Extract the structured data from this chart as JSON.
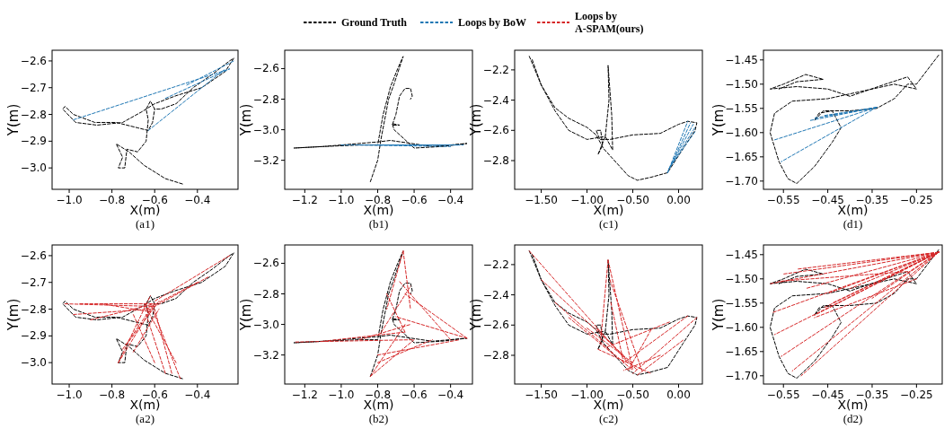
{
  "chart_data": [
    {
      "type": "line",
      "legend": "top",
      "xlabel": "X(m)",
      "ylabel": "Y(m)",
      "annotations": [
        "(a1)"
      ],
      "line_style": "dashed",
      "xlim": [
        -1.08,
        -0.21
      ],
      "ylim": [
        -3.08,
        -2.56
      ],
      "xticks": [
        {
          "value": -1.0,
          "label": "−1.0"
        },
        {
          "value": -0.8,
          "label": "−0.8"
        },
        {
          "value": -0.6,
          "label": "−0.6"
        },
        {
          "value": -0.4,
          "label": "−0.4"
        }
      ],
      "yticks": [
        {
          "value": -3.0,
          "label": "−3.0"
        },
        {
          "value": -2.9,
          "label": "−2.9"
        },
        {
          "value": -2.8,
          "label": "−2.8"
        },
        {
          "value": -2.7,
          "label": "−2.7"
        },
        {
          "value": -2.6,
          "label": "−2.6"
        }
      ],
      "series": [
        {
          "name": "Ground Truth",
          "color": "#000000",
          "x": [
            -0.47,
            -0.55,
            -0.65,
            -0.72,
            -0.78,
            -0.75,
            -0.77,
            -0.74,
            -0.73,
            -0.68,
            -0.64,
            -0.63,
            -0.64,
            -0.62,
            -0.6,
            -0.57,
            -0.5,
            -0.42,
            -0.33,
            -0.25,
            -0.23,
            -0.27,
            -0.38,
            -0.5,
            -0.6,
            -0.66,
            -0.75,
            -0.87,
            -0.97,
            -1.03,
            -1.02,
            -0.98,
            -0.88,
            -0.78,
            -0.68,
            -0.63,
            -0.61,
            -0.6
          ],
          "values": [
            -3.06,
            -3.04,
            -2.99,
            -2.94,
            -2.91,
            -2.96,
            -3.0,
            -3.0,
            -2.93,
            -2.94,
            -2.9,
            -2.82,
            -2.78,
            -2.75,
            -2.78,
            -2.78,
            -2.76,
            -2.7,
            -2.65,
            -2.6,
            -2.59,
            -2.64,
            -2.7,
            -2.73,
            -2.76,
            -2.79,
            -2.83,
            -2.84,
            -2.83,
            -2.78,
            -2.77,
            -2.8,
            -2.83,
            -2.83,
            -2.85,
            -2.86,
            -2.83,
            -2.78
          ]
        },
        {
          "name": "Loops by BoW",
          "color": "#1f77b4",
          "x": [
            -0.98,
            -0.25,
            null,
            -0.63,
            -0.27,
            null,
            -0.55,
            -0.25,
            null,
            -0.45,
            -0.23
          ],
          "values": [
            -2.82,
            -2.63,
            null,
            -2.86,
            -2.63,
            null,
            -2.74,
            -2.63,
            null,
            -2.69,
            -2.6
          ]
        }
      ]
    },
    {
      "type": "line",
      "xlabel": "X(m)",
      "ylabel": "Y(m)",
      "annotations": [
        "(b1)"
      ],
      "line_style": "dashed",
      "xlim": [
        -1.31,
        -0.28
      ],
      "ylim": [
        -3.39,
        -2.48
      ],
      "xticks": [
        {
          "value": -1.2,
          "label": "−1.2"
        },
        {
          "value": -1.0,
          "label": "−1.0"
        },
        {
          "value": -0.8,
          "label": "−0.8"
        },
        {
          "value": -0.6,
          "label": "−0.6"
        },
        {
          "value": -0.4,
          "label": "−0.4"
        }
      ],
      "yticks": [
        {
          "value": -3.2,
          "label": "−3.2"
        },
        {
          "value": -3.0,
          "label": "−3.0"
        },
        {
          "value": -2.8,
          "label": "−2.8"
        },
        {
          "value": -2.6,
          "label": "−2.6"
        }
      ],
      "series": [
        {
          "color": "#000000",
          "x": [
            -0.84,
            -0.8,
            -0.78,
            -0.74,
            -0.71,
            -0.66,
            -0.69,
            -0.73,
            -0.77,
            -0.8,
            -0.9,
            -1.1,
            -1.26,
            -1.1,
            -0.8,
            -0.73,
            -0.5,
            -0.31,
            -0.45,
            -0.6,
            -0.71,
            -0.72,
            -0.68,
            -0.72,
            -0.7,
            -0.68,
            -0.65,
            -0.62,
            -0.61,
            -0.62
          ],
          "values": [
            -3.34,
            -3.2,
            -3.05,
            -2.8,
            -2.7,
            -2.52,
            -2.6,
            -2.72,
            -2.9,
            -3.1,
            -3.1,
            -3.11,
            -3.12,
            -3.11,
            -3.08,
            -3.07,
            -3.11,
            -3.09,
            -3.11,
            -3.12,
            -3.0,
            -2.96,
            -2.97,
            -2.97,
            -2.9,
            -2.78,
            -2.73,
            -2.73,
            -2.78,
            -2.8
          ]
        },
        {
          "color": "#1f77b4",
          "x": [
            -1.0,
            -0.35,
            null,
            -0.9,
            -0.4,
            null,
            -0.8,
            -0.33
          ],
          "values": [
            -3.1,
            -3.1,
            null,
            -3.1,
            -3.11,
            null,
            -3.1,
            -3.1
          ]
        }
      ]
    },
    {
      "type": "line",
      "xlabel": "X(m)",
      "ylabel": "Y(m)",
      "annotations": [
        "(c1)"
      ],
      "line_style": "dashed",
      "xlim": [
        -1.79,
        0.26
      ],
      "ylim": [
        -2.99,
        -2.07
      ],
      "xticks": [
        {
          "value": -1.5,
          "label": "−1.50"
        },
        {
          "value": -1.0,
          "label": "−1.00"
        },
        {
          "value": -0.5,
          "label": "−0.50"
        },
        {
          "value": 0,
          "label": "0.00"
        }
      ],
      "yticks": [
        {
          "value": -2.8,
          "label": "−2.8"
        },
        {
          "value": -2.6,
          "label": "−2.6"
        },
        {
          "value": -2.4,
          "label": "−2.4"
        },
        {
          "value": -2.2,
          "label": "−2.2"
        }
      ],
      "series": [
        {
          "color": "#000000",
          "x": [
            -1.63,
            -1.5,
            -1.35,
            -1.2,
            -1.0,
            -0.9,
            -0.82,
            -0.7,
            -0.55,
            -0.45,
            -0.3,
            -0.12,
            0.05,
            0.18,
            0.2,
            0.1,
            0.0,
            -0.2,
            -0.5,
            -0.75,
            -0.86,
            -0.9,
            -0.85,
            -0.83,
            -0.88,
            -0.8,
            -0.72,
            -0.73,
            -0.77,
            -0.76,
            -0.8,
            -1.0,
            -1.2,
            -1.35,
            -1.5,
            -1.6
          ],
          "values": [
            -2.11,
            -2.3,
            -2.45,
            -2.52,
            -2.58,
            -2.63,
            -2.72,
            -2.8,
            -2.9,
            -2.93,
            -2.91,
            -2.88,
            -2.72,
            -2.6,
            -2.55,
            -2.54,
            -2.56,
            -2.62,
            -2.63,
            -2.66,
            -2.66,
            -2.6,
            -2.6,
            -2.7,
            -2.76,
            -2.64,
            -2.73,
            -2.5,
            -2.17,
            -2.4,
            -2.64,
            -2.66,
            -2.6,
            -2.47,
            -2.3,
            -2.13
          ]
        },
        {
          "color": "#1f77b4",
          "x": [
            -0.12,
            0.1,
            null,
            -0.12,
            0.13,
            null,
            -0.11,
            0.16,
            null,
            -0.1,
            0.18,
            null,
            -0.09,
            0.19
          ],
          "values": [
            -2.88,
            -2.54,
            null,
            -2.88,
            -2.55,
            null,
            -2.86,
            -2.56,
            null,
            -2.85,
            -2.58,
            null,
            -2.84,
            -2.6
          ]
        }
      ]
    },
    {
      "type": "line",
      "xlabel": "X(m)",
      "ylabel": "Y(m)",
      "annotations": [
        "(d1)"
      ],
      "line_style": "dashed",
      "xlim": [
        -0.595,
        -0.192
      ],
      "ylim": [
        -1.717,
        -1.43
      ],
      "xticks": [
        {
          "value": -0.55,
          "label": "−0.55"
        },
        {
          "value": -0.45,
          "label": "−0.45"
        },
        {
          "value": -0.35,
          "label": "−0.35"
        },
        {
          "value": -0.25,
          "label": "−0.25"
        }
      ],
      "yticks": [
        {
          "value": -1.7,
          "label": "−1.70"
        },
        {
          "value": -1.65,
          "label": "−1.65"
        },
        {
          "value": -1.6,
          "label": "−1.60"
        },
        {
          "value": -1.55,
          "label": "−1.55"
        },
        {
          "value": -1.5,
          "label": "−1.50"
        },
        {
          "value": -1.45,
          "label": "−1.45"
        }
      ],
      "series": [
        {
          "color": "#000000",
          "x": [
            -0.2,
            -0.25,
            -0.27,
            -0.3,
            -0.34,
            -0.4,
            -0.46,
            -0.48,
            -0.47,
            -0.44,
            -0.42,
            -0.44,
            -0.48,
            -0.52,
            -0.54,
            -0.56,
            -0.58,
            -0.57,
            -0.53,
            -0.45,
            -0.4,
            -0.3,
            -0.25,
            -0.27,
            -0.32,
            -0.4,
            -0.45,
            -0.52,
            -0.58,
            -0.55,
            -0.5,
            -0.46,
            -0.52,
            -0.56
          ],
          "values": [
            -1.44,
            -1.5,
            -1.5,
            -1.53,
            -1.55,
            -1.555,
            -1.555,
            -1.575,
            -1.56,
            -1.555,
            -1.59,
            -1.62,
            -1.67,
            -1.705,
            -1.695,
            -1.66,
            -1.6,
            -1.56,
            -1.535,
            -1.53,
            -1.52,
            -1.5,
            -1.51,
            -1.485,
            -1.5,
            -1.525,
            -1.51,
            -1.505,
            -1.51,
            -1.5,
            -1.48,
            -1.49,
            -1.495,
            -1.51
          ]
        },
        {
          "color": "#1f77b4",
          "x": [
            -0.34,
            -0.57,
            null,
            -0.34,
            -0.555,
            null,
            -0.34,
            -0.49,
            null,
            -0.34,
            -0.48,
            null,
            -0.34,
            -0.46
          ],
          "values": [
            -1.548,
            -1.615,
            null,
            -1.548,
            -1.66,
            null,
            -1.548,
            -1.575,
            null,
            -1.548,
            -1.57,
            null,
            -1.548,
            -1.565
          ]
        }
      ]
    },
    {
      "type": "line",
      "legend": "top",
      "xlabel": "X(m)",
      "ylabel": "Y(m)",
      "annotations": [
        "(a2)"
      ],
      "line_style": "dashed",
      "xlim": [
        -1.08,
        -0.21
      ],
      "ylim": [
        -3.08,
        -2.56
      ],
      "xticks": [
        {
          "value": -1.0,
          "label": "−1.0"
        },
        {
          "value": -0.8,
          "label": "−0.8"
        },
        {
          "value": -0.6,
          "label": "−0.6"
        },
        {
          "value": -0.4,
          "label": "−0.4"
        }
      ],
      "yticks": [
        {
          "value": -3.0,
          "label": "−3.0"
        },
        {
          "value": -2.9,
          "label": "−2.9"
        },
        {
          "value": -2.8,
          "label": "−2.8"
        },
        {
          "value": -2.7,
          "label": "−2.7"
        },
        {
          "value": -2.6,
          "label": "−2.6"
        }
      ],
      "series": [
        {
          "color": "#000000",
          "x": [
            -0.47,
            -0.55,
            -0.65,
            -0.72,
            -0.78,
            -0.75,
            -0.77,
            -0.74,
            -0.73,
            -0.68,
            -0.64,
            -0.63,
            -0.64,
            -0.62,
            -0.6,
            -0.57,
            -0.5,
            -0.42,
            -0.33,
            -0.25,
            -0.23,
            -0.27,
            -0.38,
            -0.5,
            -0.6,
            -0.66,
            -0.75,
            -0.87,
            -0.97,
            -1.03,
            -1.02,
            -0.98,
            -0.88,
            -0.78,
            -0.68,
            -0.63,
            -0.61,
            -0.6
          ],
          "values": [
            -3.06,
            -3.04,
            -2.99,
            -2.94,
            -2.91,
            -2.96,
            -3.0,
            -3.0,
            -2.93,
            -2.94,
            -2.9,
            -2.82,
            -2.78,
            -2.75,
            -2.78,
            -2.78,
            -2.76,
            -2.7,
            -2.65,
            -2.6,
            -2.59,
            -2.64,
            -2.7,
            -2.73,
            -2.76,
            -2.79,
            -2.83,
            -2.84,
            -2.83,
            -2.78,
            -2.77,
            -2.8,
            -2.83,
            -2.83,
            -2.85,
            -2.86,
            -2.83,
            -2.78
          ]
        },
        {
          "name": "Loops by A-SPAM(ours)",
          "color": "#d62728",
          "x": [
            -1.02,
            -0.6,
            null,
            -0.98,
            -0.62,
            null,
            -0.9,
            -0.6,
            null,
            -0.77,
            -0.6,
            null,
            -0.75,
            -0.62,
            null,
            -0.72,
            -0.58,
            null,
            -0.48,
            -0.62,
            null,
            -0.52,
            -0.6,
            null,
            -0.55,
            -0.64,
            null,
            -0.6,
            -0.7,
            null,
            -0.7,
            -0.58,
            null,
            -0.35,
            -0.6,
            null,
            -0.25,
            -0.6,
            null,
            -0.4,
            -0.64,
            null,
            -0.95,
            -0.6,
            null,
            -0.85,
            -0.62,
            null,
            -0.77,
            -0.62,
            null,
            -0.65,
            -0.5
          ],
          "values": [
            -2.78,
            -2.79,
            null,
            -2.82,
            -2.8,
            null,
            -2.84,
            -2.78,
            null,
            -3.0,
            -2.78,
            null,
            -2.95,
            -2.8,
            null,
            -2.92,
            -2.77,
            null,
            -3.06,
            -2.78,
            null,
            -3.04,
            -2.8,
            null,
            -3.04,
            -2.82,
            null,
            -3.0,
            -2.82,
            null,
            -2.96,
            -2.8,
            null,
            -2.68,
            -2.79,
            null,
            -2.6,
            -2.77,
            null,
            -2.7,
            -2.8,
            null,
            -2.78,
            -2.78,
            null,
            -2.78,
            -2.81,
            null,
            -3.0,
            -2.75,
            null,
            -2.78,
            -3.0
          ]
        }
      ]
    },
    {
      "type": "line",
      "xlabel": "X(m)",
      "ylabel": "Y(m)",
      "annotations": [
        "(b2)"
      ],
      "line_style": "dashed",
      "xlim": [
        -1.31,
        -0.28
      ],
      "ylim": [
        -3.39,
        -2.48
      ],
      "xticks": [
        {
          "value": -1.2,
          "label": "−1.2"
        },
        {
          "value": -1.0,
          "label": "−1.0"
        },
        {
          "value": -0.8,
          "label": "−0.8"
        },
        {
          "value": -0.6,
          "label": "−0.6"
        },
        {
          "value": -0.4,
          "label": "−0.4"
        }
      ],
      "yticks": [
        {
          "value": -3.2,
          "label": "−3.2"
        },
        {
          "value": -3.0,
          "label": "−3.0"
        },
        {
          "value": -2.8,
          "label": "−2.8"
        },
        {
          "value": -2.6,
          "label": "−2.6"
        }
      ],
      "series": [
        {
          "color": "#000000",
          "x": [
            -0.84,
            -0.8,
            -0.78,
            -0.74,
            -0.71,
            -0.66,
            -0.69,
            -0.73,
            -0.77,
            -0.8,
            -0.9,
            -1.1,
            -1.26,
            -1.1,
            -0.8,
            -0.73,
            -0.5,
            -0.31,
            -0.45,
            -0.6,
            -0.71,
            -0.72,
            -0.68,
            -0.72,
            -0.7,
            -0.68,
            -0.65,
            -0.62,
            -0.61,
            -0.62
          ],
          "values": [
            -3.34,
            -3.2,
            -3.05,
            -2.8,
            -2.7,
            -2.52,
            -2.6,
            -2.72,
            -2.9,
            -3.1,
            -3.1,
            -3.11,
            -3.12,
            -3.11,
            -3.08,
            -3.07,
            -3.11,
            -3.09,
            -3.11,
            -3.12,
            -3.0,
            -2.96,
            -2.97,
            -2.97,
            -2.9,
            -2.78,
            -2.73,
            -2.73,
            -2.78,
            -2.8
          ]
        },
        {
          "color": "#d62728",
          "x": [
            -1.25,
            -0.6,
            null,
            -1.1,
            -0.65,
            null,
            -0.84,
            -0.65,
            null,
            -0.84,
            -0.6,
            null,
            -0.8,
            -0.5,
            null,
            -0.66,
            -0.62,
            null,
            -0.66,
            -0.75,
            null,
            -0.31,
            -0.7,
            null,
            -0.31,
            -0.65,
            null,
            -0.4,
            -0.68,
            null,
            -0.78,
            -0.62,
            null,
            -0.75,
            -0.65,
            null,
            -0.8,
            -0.35,
            null,
            -0.9,
            -0.62
          ],
          "values": [
            -3.115,
            -3.1,
            null,
            -3.11,
            -3.05,
            null,
            -3.34,
            -3.0,
            null,
            -3.34,
            -3.1,
            null,
            -3.25,
            -3.1,
            null,
            -2.52,
            -2.9,
            null,
            -2.52,
            -2.9,
            null,
            -3.09,
            -2.95,
            null,
            -3.09,
            -2.8,
            null,
            -3.1,
            -2.72,
            null,
            -3.05,
            -2.75,
            null,
            -2.8,
            -3.05,
            null,
            -3.2,
            -3.1,
            null,
            -3.1,
            -3.0
          ]
        }
      ]
    },
    {
      "type": "line",
      "xlabel": "X(m)",
      "ylabel": "Y(m)",
      "annotations": [
        "(c2)"
      ],
      "line_style": "dashed",
      "xlim": [
        -1.79,
        0.26
      ],
      "ylim": [
        -2.99,
        -2.07
      ],
      "xticks": [
        {
          "value": -1.5,
          "label": "−1.50"
        },
        {
          "value": -1.0,
          "label": "−1.00"
        },
        {
          "value": -0.5,
          "label": "−0.50"
        },
        {
          "value": 0,
          "label": "0.00"
        }
      ],
      "yticks": [
        {
          "value": -2.8,
          "label": "−2.8"
        },
        {
          "value": -2.6,
          "label": "−2.6"
        },
        {
          "value": -2.4,
          "label": "−2.4"
        },
        {
          "value": -2.2,
          "label": "−2.2"
        }
      ],
      "series": [
        {
          "color": "#000000",
          "x": [
            -1.63,
            -1.5,
            -1.35,
            -1.2,
            -1.0,
            -0.9,
            -0.82,
            -0.7,
            -0.55,
            -0.45,
            -0.3,
            -0.12,
            0.05,
            0.18,
            0.2,
            0.1,
            0.0,
            -0.2,
            -0.5,
            -0.75,
            -0.86,
            -0.9,
            -0.85,
            -0.83,
            -0.88,
            -0.8,
            -0.72,
            -0.73,
            -0.77,
            -0.76,
            -0.8,
            -1.0,
            -1.2,
            -1.35,
            -1.5,
            -1.6
          ],
          "values": [
            -2.11,
            -2.3,
            -2.45,
            -2.52,
            -2.58,
            -2.63,
            -2.72,
            -2.8,
            -2.9,
            -2.93,
            -2.91,
            -2.88,
            -2.72,
            -2.6,
            -2.55,
            -2.54,
            -2.56,
            -2.62,
            -2.63,
            -2.66,
            -2.66,
            -2.6,
            -2.6,
            -2.7,
            -2.76,
            -2.64,
            -2.73,
            -2.5,
            -2.17,
            -2.4,
            -2.64,
            -2.66,
            -2.6,
            -2.47,
            -2.3,
            -2.13
          ]
        },
        {
          "color": "#d62728",
          "x": [
            -1.63,
            -0.55,
            null,
            -1.5,
            -0.6,
            null,
            -1.35,
            -0.5,
            null,
            -1.2,
            -0.7,
            null,
            -0.77,
            -0.5,
            null,
            -0.77,
            -0.85,
            null,
            -0.75,
            -0.4,
            null,
            -0.74,
            -0.6,
            null,
            0.2,
            -0.5,
            null,
            0.1,
            -0.6,
            null,
            0.05,
            -0.45,
            null,
            -0.1,
            -0.8,
            null,
            -0.3,
            -0.55,
            null,
            -0.9,
            -0.45,
            null,
            -0.88,
            -0.3,
            null,
            -1.0,
            -0.5,
            null,
            -0.2,
            -0.6
          ],
          "values": [
            -2.11,
            -2.85,
            null,
            -2.3,
            -2.8,
            null,
            -2.45,
            -2.9,
            null,
            -2.55,
            -2.8,
            null,
            -2.17,
            -2.9,
            null,
            -2.17,
            -2.7,
            null,
            -2.3,
            -2.9,
            null,
            -2.45,
            -2.85,
            null,
            -2.55,
            -2.92,
            null,
            -2.54,
            -2.85,
            null,
            -2.7,
            -2.93,
            null,
            -2.58,
            -2.75,
            null,
            -2.63,
            -2.9,
            null,
            -2.62,
            -2.9,
            null,
            -2.76,
            -2.92,
            null,
            -2.62,
            -2.85,
            null,
            -2.8,
            -2.9
          ]
        }
      ]
    },
    {
      "type": "line",
      "xlabel": "X(m)",
      "ylabel": "Y(m)",
      "annotations": [
        "(d2)"
      ],
      "line_style": "dashed",
      "xlim": [
        -0.595,
        -0.192
      ],
      "ylim": [
        -1.717,
        -1.43
      ],
      "xticks": [
        {
          "value": -0.55,
          "label": "−0.55"
        },
        {
          "value": -0.45,
          "label": "−0.45"
        },
        {
          "value": -0.35,
          "label": "−0.35"
        },
        {
          "value": -0.25,
          "label": "−0.25"
        }
      ],
      "yticks": [
        {
          "value": -1.7,
          "label": "−1.70"
        },
        {
          "value": -1.65,
          "label": "−1.65"
        },
        {
          "value": -1.6,
          "label": "−1.60"
        },
        {
          "value": -1.55,
          "label": "−1.55"
        },
        {
          "value": -1.5,
          "label": "−1.50"
        },
        {
          "value": -1.45,
          "label": "−1.45"
        }
      ],
      "series": [
        {
          "color": "#000000",
          "x": [
            -0.2,
            -0.25,
            -0.27,
            -0.3,
            -0.34,
            -0.4,
            -0.46,
            -0.48,
            -0.47,
            -0.44,
            -0.42,
            -0.44,
            -0.48,
            -0.52,
            -0.54,
            -0.56,
            -0.58,
            -0.57,
            -0.53,
            -0.45,
            -0.4,
            -0.3,
            -0.25,
            -0.27,
            -0.32,
            -0.4,
            -0.45,
            -0.52,
            -0.58,
            -0.55,
            -0.5,
            -0.46,
            -0.52,
            -0.56
          ],
          "values": [
            -1.44,
            -1.5,
            -1.5,
            -1.53,
            -1.55,
            -1.555,
            -1.555,
            -1.575,
            -1.56,
            -1.555,
            -1.59,
            -1.62,
            -1.67,
            -1.705,
            -1.695,
            -1.66,
            -1.6,
            -1.56,
            -1.535,
            -1.53,
            -1.52,
            -1.5,
            -1.51,
            -1.485,
            -1.5,
            -1.525,
            -1.51,
            -1.505,
            -1.51,
            -1.5,
            -1.48,
            -1.49,
            -1.495,
            -1.51
          ]
        },
        {
          "color": "#d62728",
          "x": [
            -0.2,
            -0.58,
            null,
            -0.2,
            -0.55,
            null,
            -0.2,
            -0.52,
            null,
            -0.2,
            -0.5,
            null,
            -0.2,
            -0.45,
            null,
            -0.2,
            -0.48,
            null,
            -0.2,
            -0.46,
            null,
            -0.2,
            -0.576,
            null,
            -0.2,
            -0.57,
            null,
            -0.2,
            -0.555,
            null,
            -0.2,
            -0.53,
            null,
            -0.2,
            -0.51,
            null,
            -0.2,
            -0.44,
            null,
            -0.2,
            -0.4,
            null,
            -0.2,
            -0.35,
            null,
            -0.27,
            -0.56,
            null,
            -0.25,
            -0.48
          ],
          "values": [
            -1.445,
            -1.51,
            null,
            -1.445,
            -1.49,
            null,
            -1.445,
            -1.48,
            null,
            -1.445,
            -1.52,
            null,
            -1.445,
            -1.53,
            null,
            -1.445,
            -1.575,
            null,
            -1.445,
            -1.56,
            null,
            -1.445,
            -1.57,
            null,
            -1.445,
            -1.615,
            null,
            -1.445,
            -1.66,
            null,
            -1.445,
            -1.69,
            null,
            -1.445,
            -1.7,
            null,
            -1.445,
            -1.55,
            null,
            -1.445,
            -1.52,
            null,
            -1.445,
            -1.54,
            null,
            -1.485,
            -1.505,
            null,
            -1.5,
            -1.58
          ]
        }
      ]
    }
  ]
}
